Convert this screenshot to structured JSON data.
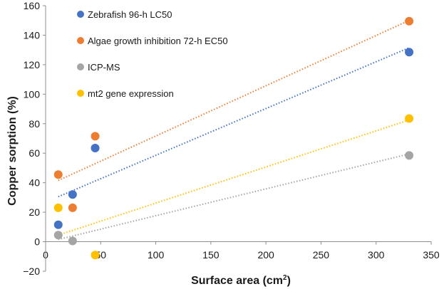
{
  "chart_data": {
    "type": "scatter",
    "title": "",
    "xlabel": "Surface area (cm",
    "xlabel_superscript": "2",
    "xlabel_close": ")",
    "ylabel": "Copper sorption (%)",
    "xlim": [
      0,
      350
    ],
    "ylim": [
      -20,
      160
    ],
    "xticks": [
      0,
      50,
      100,
      150,
      200,
      250,
      300,
      350
    ],
    "yticks": [
      -20,
      0,
      20,
      40,
      60,
      80,
      100,
      120,
      140,
      160
    ],
    "grid": false,
    "trendline_style": "dotted",
    "legend_position": "top-left",
    "series": [
      {
        "name": "Zebrafish 96-h LC50",
        "color": "#4472C4",
        "points": [
          [
            11.5,
            11.5
          ],
          [
            24.5,
            32
          ],
          [
            45,
            63.5
          ],
          [
            330,
            128.5
          ]
        ],
        "trend": [
          [
            11.5,
            30.5
          ],
          [
            330,
            131.5
          ]
        ]
      },
      {
        "name": "Algae growth inhibition 72-h EC50",
        "color": "#ED7D31",
        "points": [
          [
            11.5,
            45.5
          ],
          [
            24.5,
            23
          ],
          [
            45,
            71.5
          ],
          [
            330,
            149.5
          ]
        ],
        "trend": [
          [
            11.5,
            41.5
          ],
          [
            330,
            150
          ]
        ]
      },
      {
        "name": "ICP-MS",
        "color": "#A5A5A5",
        "points": [
          [
            11.5,
            4.5
          ],
          [
            24.5,
            0.5
          ],
          [
            330,
            58.5
          ]
        ],
        "trend": [
          [
            11.5,
            1.5
          ],
          [
            330,
            59.5
          ]
        ]
      },
      {
        "name": "mt2 gene expression",
        "color": "#FFC000",
        "points": [
          [
            11.5,
            23
          ],
          [
            45,
            -9
          ],
          [
            330,
            83.5
          ]
        ],
        "trend": [
          [
            11.5,
            4.5
          ],
          [
            330,
            82.5
          ]
        ]
      }
    ]
  }
}
